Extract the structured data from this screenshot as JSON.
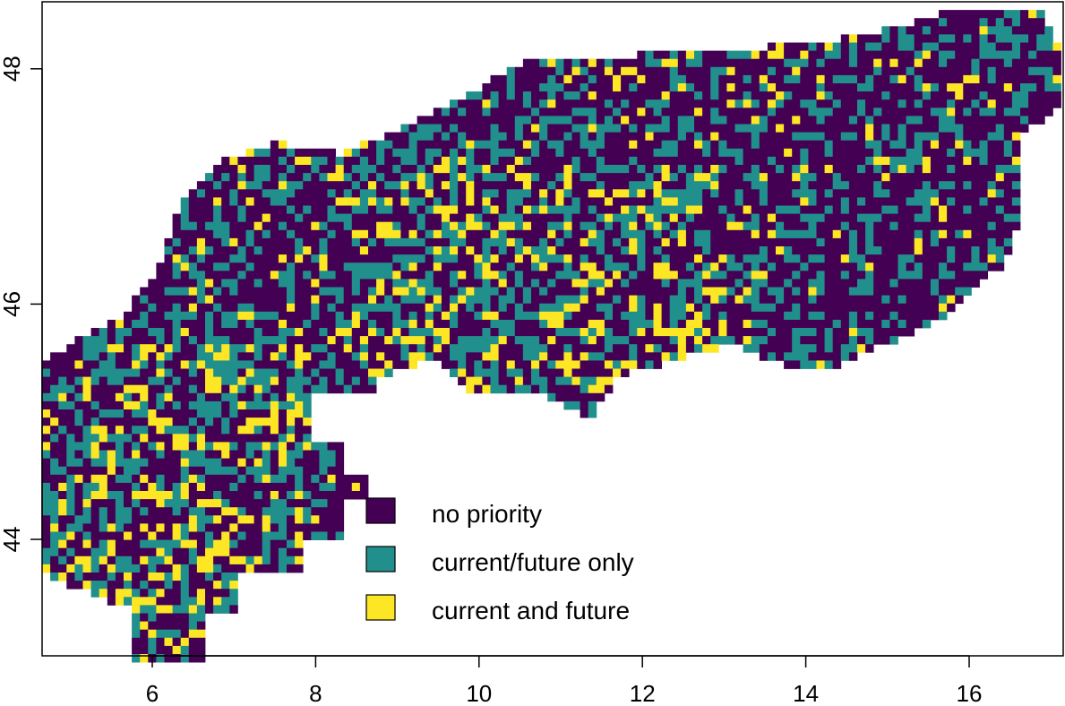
{
  "map": {
    "x_axis": {
      "ticks": [
        "6",
        "8",
        "10",
        "12",
        "14",
        "16"
      ],
      "range": [
        4.7,
        17.1
      ]
    },
    "y_axis": {
      "ticks": [
        "44",
        "46",
        "48"
      ],
      "range": [
        43.0,
        48.5
      ]
    },
    "colors": {
      "no_priority": "#440154",
      "current_future_only": "#21908C",
      "current_and_future": "#FDE725"
    },
    "legend": {
      "items": [
        {
          "label": "no priority",
          "color": "#440154"
        },
        {
          "label": "current/future only",
          "color": "#21908C"
        },
        {
          "label": "current and future",
          "color": "#FDE725"
        }
      ]
    }
  }
}
